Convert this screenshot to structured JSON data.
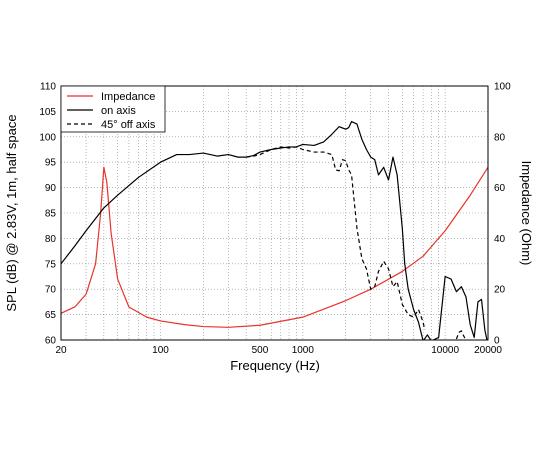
{
  "chart_data": {
    "type": "line",
    "xlabel": "Frequency (Hz)",
    "ylabel": "SPL (dB) @ 2.83V, 1m, half space",
    "y2label": "Impedance (Ohm)",
    "xscale": "log",
    "xlim": [
      20,
      20000
    ],
    "ylim": [
      60,
      110
    ],
    "y2lim": [
      0,
      100
    ],
    "grid": true,
    "legend_position": "top-left",
    "x_tick_labels": [
      {
        "value": 20,
        "label": "20"
      },
      {
        "value": 100,
        "label": "100"
      },
      {
        "value": 500,
        "label": "500"
      },
      {
        "value": 1000,
        "label": "1000"
      },
      {
        "value": 10000,
        "label": "10000"
      },
      {
        "value": 20000,
        "label": "20000"
      }
    ],
    "y_ticks": [
      60,
      65,
      70,
      75,
      80,
      85,
      90,
      95,
      100,
      105,
      110
    ],
    "y2_ticks": [
      0,
      20,
      40,
      60,
      80,
      100
    ],
    "series": [
      {
        "name": "Impedance",
        "axis": "right",
        "color": "#e8332a",
        "style": "solid",
        "x": [
          20,
          25,
          30,
          35,
          38,
          40,
          42,
          45,
          50,
          60,
          80,
          100,
          150,
          200,
          300,
          500,
          1000,
          2000,
          3000,
          5000,
          7000,
          10000,
          15000,
          20000
        ],
        "y": [
          10.5,
          13,
          18,
          30,
          50,
          68,
          62,
          42,
          24,
          13,
          9,
          7.5,
          6,
          5.3,
          5,
          5.8,
          9,
          15.5,
          20,
          27,
          33,
          43,
          57,
          68
        ]
      },
      {
        "name": "on axis",
        "axis": "left",
        "color": "#000000",
        "style": "solid",
        "x": [
          20,
          25,
          30,
          40,
          50,
          70,
          100,
          130,
          160,
          200,
          250,
          300,
          350,
          400,
          450,
          500,
          600,
          700,
          800,
          900,
          1000,
          1200,
          1400,
          1600,
          1800,
          2000,
          2100,
          2200,
          2400,
          2600,
          2800,
          3000,
          3200,
          3400,
          3700,
          4000,
          4300,
          4600,
          5000,
          5200,
          5500,
          6000,
          6500,
          7000,
          7500,
          8000,
          9000,
          10000,
          11000,
          12000,
          13000,
          14000,
          15000,
          16000,
          17000,
          18000,
          19000,
          20000
        ],
        "y": [
          75,
          78.5,
          81.5,
          86,
          88.5,
          92,
          95,
          96.5,
          96.5,
          96.8,
          96.2,
          96.5,
          96,
          96,
          96.3,
          97,
          97.5,
          97.8,
          98,
          98,
          98.5,
          98.3,
          99,
          100.5,
          102,
          101.5,
          101.8,
          103,
          102.5,
          99.5,
          97.5,
          96,
          95.5,
          92.5,
          94,
          91.5,
          96,
          92.5,
          82,
          75,
          70,
          66,
          63.5,
          59.8,
          61,
          59.8,
          60.5,
          72.5,
          72,
          69.5,
          70.5,
          68.5,
          63,
          60.5,
          67.5,
          68,
          62,
          59
        ]
      },
      {
        "name": "45° off axis",
        "axis": "left",
        "color": "#000000",
        "style": "dashed",
        "x": [
          400,
          450,
          500,
          600,
          700,
          800,
          900,
          1000,
          1200,
          1400,
          1600,
          1700,
          1800,
          1900,
          2000,
          2100,
          2200,
          2400,
          2600,
          2800,
          3000,
          3200,
          3400,
          3700,
          4000,
          4300,
          4600,
          5000,
          5500,
          6000,
          6500,
          7000,
          7200
        ],
        "y": [
          96,
          96.2,
          96.5,
          97.5,
          98,
          97.8,
          98,
          97.5,
          97,
          97,
          96.5,
          93.5,
          93.3,
          95.5,
          95.3,
          93.5,
          92.5,
          82,
          76,
          74,
          70,
          70.5,
          73.5,
          75.5,
          74,
          70.5,
          71.5,
          67,
          65,
          64.5,
          66,
          63.5,
          62
        ]
      },
      {
        "name": "",
        "axis": "left",
        "color": "#000000",
        "style": "dashed",
        "x": [
          12000,
          12500,
          13000,
          13500,
          14000
        ],
        "y": [
          60.2,
          61.5,
          61.8,
          60.8,
          60
        ]
      }
    ]
  }
}
